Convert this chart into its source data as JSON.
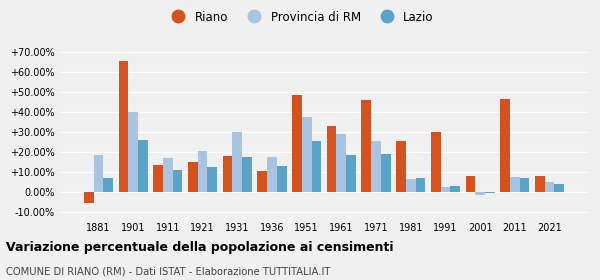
{
  "years": [
    1881,
    1901,
    1911,
    1921,
    1931,
    1936,
    1951,
    1961,
    1971,
    1981,
    1991,
    2001,
    2011,
    2021
  ],
  "riano": [
    -5.5,
    65.5,
    13.5,
    15.0,
    18.0,
    10.5,
    48.5,
    33.0,
    46.0,
    25.5,
    30.0,
    8.0,
    46.5,
    8.0
  ],
  "provincia_rm": [
    18.5,
    40.0,
    17.0,
    20.5,
    30.0,
    17.5,
    37.5,
    29.0,
    25.5,
    6.5,
    2.5,
    -1.5,
    7.5,
    5.0
  ],
  "lazio": [
    7.0,
    26.0,
    11.0,
    12.5,
    17.5,
    13.0,
    25.5,
    18.5,
    19.0,
    7.0,
    3.0,
    -0.5,
    7.0,
    4.0
  ],
  "color_riano": "#d4521e",
  "color_provincia": "#a8c4e0",
  "color_lazio": "#5ba3c9",
  "ylim": [
    -13,
    78
  ],
  "yticks": [
    -10,
    0,
    10,
    20,
    30,
    40,
    50,
    60,
    70
  ],
  "ytick_labels": [
    "-10.00%",
    "0.00%",
    "+10.00%",
    "+20.00%",
    "+30.00%",
    "+40.00%",
    "+50.00%",
    "+60.00%",
    "+70.00%"
  ],
  "title": "Variazione percentuale della popolazione ai censimenti",
  "subtitle": "COMUNE DI RIANO (RM) - Dati ISTAT - Elaborazione TUTTITALIA.IT",
  "legend_labels": [
    "Riano",
    "Provincia di RM",
    "Lazio"
  ],
  "background_color": "#f0f0f0",
  "grid_color": "#ffffff",
  "bar_width": 0.28
}
